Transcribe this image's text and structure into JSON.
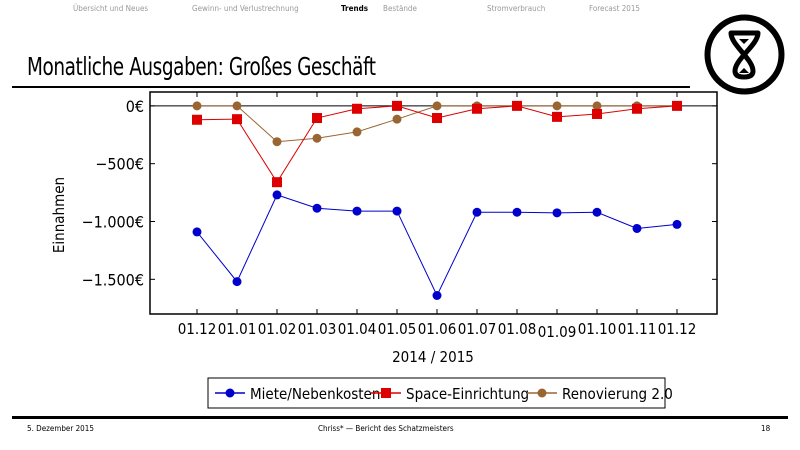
{
  "nav": {
    "items": [
      {
        "label": "Übersicht und Neues"
      },
      {
        "label": "Gewinn- und Verlustrechnung"
      },
      {
        "label": "Trends",
        "active": true
      },
      {
        "label": "Bestände"
      },
      {
        "label": "Stromverbrauch"
      },
      {
        "label": "Forecast 2015"
      }
    ]
  },
  "slide": {
    "title": "Monatliche Ausgaben: Großes Geschäft",
    "logo": "hourglass-logo"
  },
  "footer": {
    "date": "5. Dezember 2015",
    "center": "Chriss* — Bericht des Schatzmeisters",
    "page": "18"
  },
  "chart_data": {
    "type": "line",
    "title": "",
    "xlabel": "2014 / 2015",
    "ylabel": "Einnahmen",
    "categories": [
      "01.12",
      "01.01",
      "01.02",
      "01.03",
      "01.04",
      "01.05",
      "01.06",
      "01.07",
      "01.08",
      "01.09",
      "01.10",
      "01.11",
      "01.12"
    ],
    "ylim": [
      -1800,
      120
    ],
    "yticks": [
      0,
      -500,
      -1000,
      -1500
    ],
    "ytick_labels": [
      "0€",
      "−500€",
      "−1.000€",
      "−1.500€"
    ],
    "grid": false,
    "legend_position": "bottom",
    "series": [
      {
        "name": "Miete/Nebenkosten",
        "color": "#0000cc",
        "marker": "circle",
        "values": [
          -1090,
          -1520,
          -770,
          -885,
          -910,
          -910,
          -1640,
          -920,
          -920,
          -925,
          -920,
          -1060,
          -1025
        ]
      },
      {
        "name": "Space-Einrichtung",
        "color": "#dd0000",
        "marker": "square",
        "values": [
          -120,
          -115,
          -660,
          -105,
          -25,
          0,
          -105,
          -25,
          0,
          -95,
          -70,
          -25,
          0
        ]
      },
      {
        "name": "Renovierung 2.0",
        "color": "#996633",
        "marker": "circle",
        "values": [
          0,
          0,
          -310,
          -280,
          -225,
          -115,
          0,
          0,
          0,
          0,
          0,
          0,
          0
        ]
      }
    ]
  }
}
